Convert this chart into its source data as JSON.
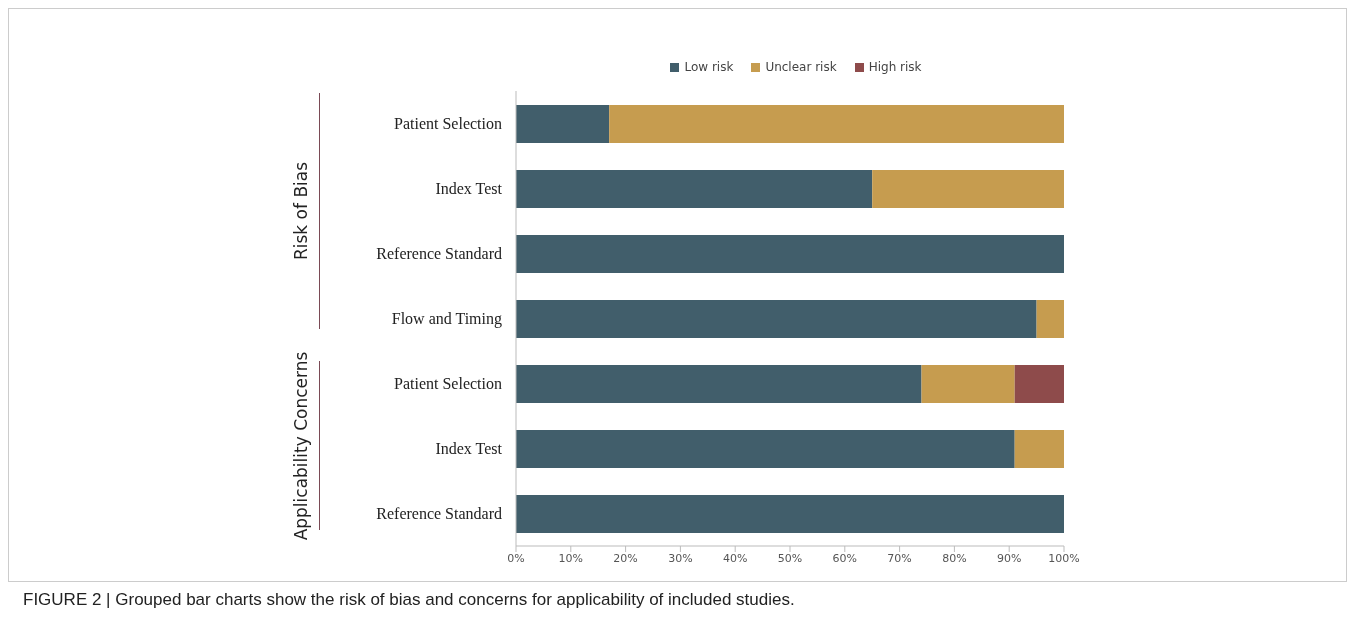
{
  "chart_data": {
    "type": "bar",
    "orientation": "horizontal",
    "stacked": true,
    "categories": [
      "Patient Selection",
      "Index Test",
      "Reference Standard",
      "Flow and Timing",
      "Patient Selection",
      "Index Test",
      "Reference Standard"
    ],
    "series": [
      {
        "name": "Low risk",
        "color": "#415e6b",
        "values": [
          17,
          65,
          100,
          95,
          74,
          91,
          100
        ]
      },
      {
        "name": "Unclear risk",
        "color": "#c69c4f",
        "values": [
          83,
          35,
          0,
          5,
          17,
          9,
          0
        ]
      },
      {
        "name": "High risk",
        "color": "#8e4b4b",
        "values": [
          0,
          0,
          0,
          0,
          9,
          0,
          0
        ]
      }
    ],
    "xlim": [
      0,
      100
    ],
    "xticks": [
      {
        "value": 0,
        "label": "0%"
      },
      {
        "value": 10,
        "label": "10%"
      },
      {
        "value": 20,
        "label": "20%"
      },
      {
        "value": 30,
        "label": "30%"
      },
      {
        "value": 40,
        "label": "40%"
      },
      {
        "value": 50,
        "label": "50%"
      },
      {
        "value": 60,
        "label": "60%"
      },
      {
        "value": 70,
        "label": "70%"
      },
      {
        "value": 80,
        "label": "80%"
      },
      {
        "value": 90,
        "label": "90%"
      },
      {
        "value": 100,
        "label": "100%"
      }
    ],
    "legend": "top",
    "grid": false,
    "annotations": [
      "Risk of Bias",
      "Applicability Concerns",
      "FIGURE 2 | Grouped bar charts show the risk of bias and concerns for applicability of included studies."
    ]
  }
}
